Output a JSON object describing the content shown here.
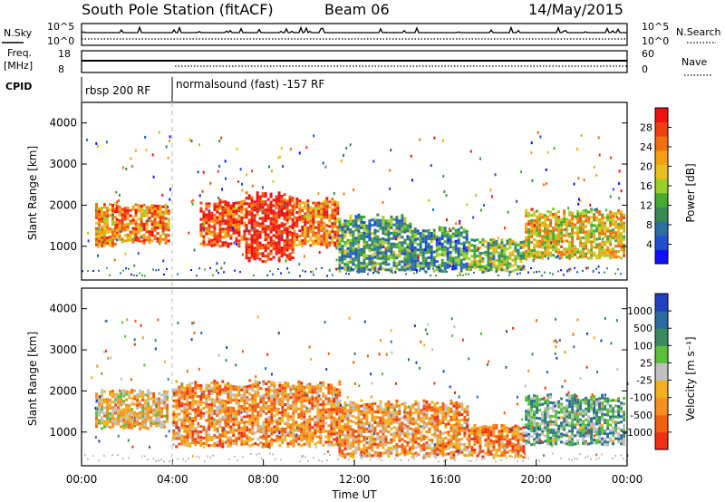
{
  "header": {
    "station": "South Pole Station (fitACF)",
    "beam": "Beam 06",
    "date": "14/May/2015"
  },
  "noise_panel": {
    "left_label": "N.Sky",
    "right_label": "N.Search",
    "left_ticks": [
      "10^5",
      "10^0"
    ],
    "right_ticks": [
      "10^5",
      "10^0"
    ]
  },
  "freq_panel": {
    "left_label_1": "Freq.",
    "left_label_2": "[MHz]",
    "right_label": "Nave",
    "left_ticks": [
      "18",
      "8"
    ],
    "right_ticks": [
      "60",
      "0"
    ]
  },
  "cpid": {
    "label": "CPID",
    "segments": [
      {
        "label": "rbsp 200 RF",
        "start_hour": 0,
        "end_hour": 4.0
      },
      {
        "label": "normalsound (fast) -157 RF",
        "start_hour": 4.0,
        "end_hour": 24
      }
    ]
  },
  "chart_data": [
    {
      "type": "heatmap",
      "name": "power",
      "ylabel": "Slant Range [km]",
      "xlabel": "",
      "xlim": [
        0,
        24
      ],
      "ylim": [
        180,
        4500
      ],
      "yticks": [
        "1000",
        "2000",
        "3000",
        "4000"
      ],
      "colorbar": {
        "label": "Power [dB]",
        "ticks": [
          "4",
          "8",
          "12",
          "16",
          "20",
          "24",
          "28"
        ],
        "colors": [
          "#1010ff",
          "#2050d0",
          "#2a70a0",
          "#3a8a50",
          "#44aa30",
          "#9ad02a",
          "#e8c020",
          "#f5a010",
          "#f07010",
          "#f04010",
          "#f01010"
        ]
      },
      "echo_regions": [
        {
          "t0": 0.6,
          "t1": 1.5,
          "r0": 1000,
          "r1": 2100,
          "level": 0.7
        },
        {
          "t0": 1.5,
          "t1": 3.8,
          "r0": 1100,
          "r1": 2050,
          "level": 0.75
        },
        {
          "t0": 5.2,
          "t1": 7.2,
          "r0": 1000,
          "r1": 2200,
          "level": 0.85
        },
        {
          "t0": 7.2,
          "t1": 9.3,
          "r0": 650,
          "r1": 2350,
          "level": 0.95
        },
        {
          "t0": 9.3,
          "t1": 11.3,
          "r0": 1000,
          "r1": 2200,
          "level": 0.75
        },
        {
          "t0": 11.3,
          "t1": 14.5,
          "r0": 400,
          "r1": 1800,
          "level": 0.35
        },
        {
          "t0": 14.5,
          "t1": 17.0,
          "r0": 400,
          "r1": 1500,
          "level": 0.3
        },
        {
          "t0": 17.0,
          "t1": 19.5,
          "r0": 400,
          "r1": 1200,
          "level": 0.45
        },
        {
          "t0": 19.5,
          "t1": 23.9,
          "r0": 700,
          "r1": 1950,
          "level": 0.6
        }
      ]
    },
    {
      "type": "heatmap",
      "name": "velocity",
      "ylabel": "Slant Range [km]",
      "xlabel": "Time UT",
      "xlim": [
        0,
        24
      ],
      "ylim": [
        180,
        4500
      ],
      "xticks": [
        "00:00",
        "04:00",
        "08:00",
        "12:00",
        "16:00",
        "20:00",
        "00:00"
      ],
      "yticks": [
        "1000",
        "2000",
        "3000",
        "4000"
      ],
      "colorbar": {
        "label": "Velocity [m s⁻¹]",
        "ticks": [
          "1000",
          "500",
          "100",
          "25",
          "-25",
          "-100",
          "-500",
          "-1000"
        ],
        "colors": [
          "#2040c0",
          "#2a6aa0",
          "#3a8a60",
          "#5abf3a",
          "#c0c0c0",
          "#f5b020",
          "#f59020",
          "#f06010",
          "#f03010"
        ]
      },
      "echo_regions": [
        {
          "t0": 0.6,
          "t1": 3.8,
          "r0": 1100,
          "r1": 2050,
          "level": 0.6
        },
        {
          "t0": 4.0,
          "t1": 11.3,
          "r0": 650,
          "r1": 2300,
          "level": 0.72
        },
        {
          "t0": 11.3,
          "t1": 17.0,
          "r0": 400,
          "r1": 1800,
          "level": 0.7
        },
        {
          "t0": 17.0,
          "t1": 19.5,
          "r0": 400,
          "r1": 1200,
          "level": 0.75
        },
        {
          "t0": 19.5,
          "t1": 23.9,
          "r0": 700,
          "r1": 1950,
          "level": 0.35
        }
      ]
    }
  ]
}
